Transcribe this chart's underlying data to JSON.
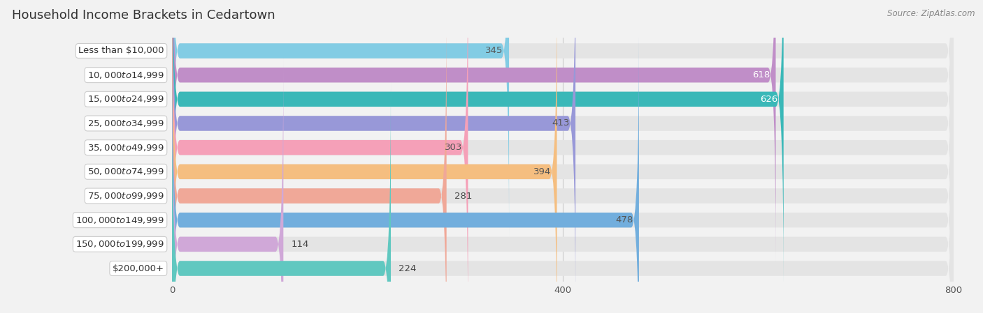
{
  "title": "Household Income Brackets in Cedartown",
  "source": "Source: ZipAtlas.com",
  "categories": [
    "Less than $10,000",
    "$10,000 to $14,999",
    "$15,000 to $24,999",
    "$25,000 to $34,999",
    "$35,000 to $49,999",
    "$50,000 to $74,999",
    "$75,000 to $99,999",
    "$100,000 to $149,999",
    "$150,000 to $199,999",
    "$200,000+"
  ],
  "values": [
    345,
    618,
    626,
    413,
    303,
    394,
    281,
    478,
    114,
    224
  ],
  "bar_colors": [
    "#82cce4",
    "#c08ec8",
    "#3ab8b8",
    "#9898d8",
    "#f5a0b8",
    "#f5be80",
    "#f0a898",
    "#72aedd",
    "#d0a8d8",
    "#60c8c0"
  ],
  "value_inside_color": [
    "#555555",
    "#ffffff",
    "#ffffff",
    "#555555",
    "#555555",
    "#555555",
    "#555555",
    "#555555",
    "#555555",
    "#555555"
  ],
  "xlim": [
    0,
    800
  ],
  "xticks": [
    0,
    400,
    800
  ],
  "background_color": "#f2f2f2",
  "bar_bg_color": "#e4e4e4",
  "row_bg_color": "#eeeeee",
  "title_fontsize": 13,
  "label_fontsize": 9.5,
  "value_fontsize": 9.5,
  "tick_fontsize": 9.5
}
